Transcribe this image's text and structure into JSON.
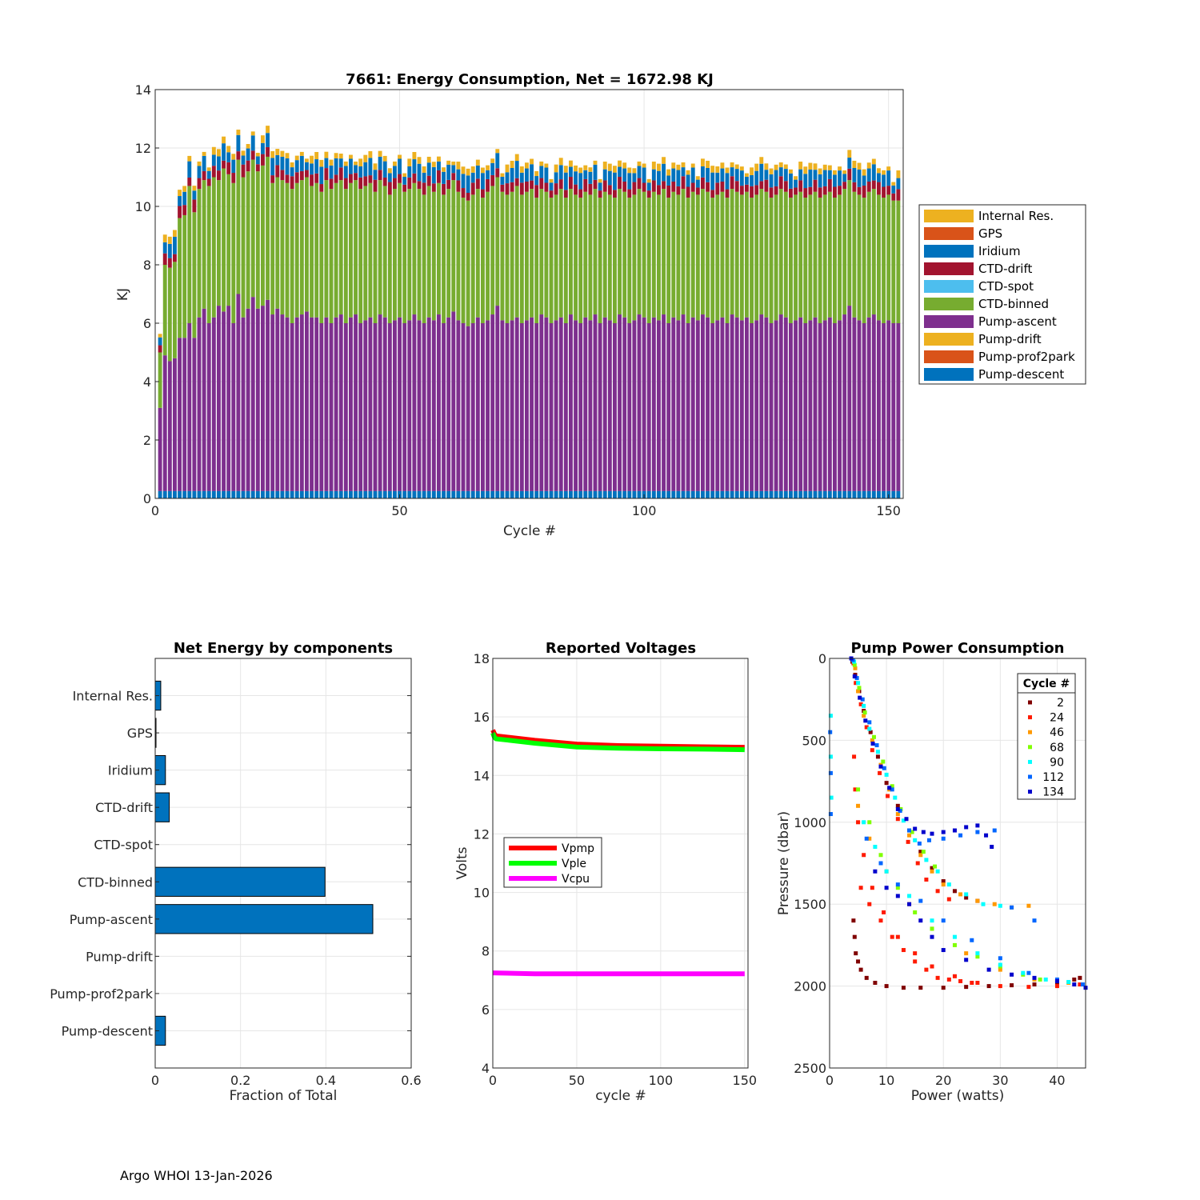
{
  "footer": "Argo WHOI 13-Jan-2026",
  "chart_data": [
    {
      "id": "energy",
      "type": "bar",
      "stacked": true,
      "title": "7661: Energy Consumption,  Net = 1672.98 KJ",
      "xlabel": "Cycle #",
      "ylabel": "KJ",
      "xlim": [
        0,
        153
      ],
      "ylim": [
        0,
        14
      ],
      "xticks": [
        0,
        50,
        100,
        150
      ],
      "yticks": [
        0,
        2,
        4,
        6,
        8,
        10,
        12,
        14
      ],
      "grid": true,
      "legend_position": "outside-right",
      "legend": [
        "Internal Res.",
        "GPS",
        "Iridium",
        "CTD-drift",
        "CTD-spot",
        "CTD-binned",
        "Pump-ascent",
        "Pump-drift",
        "Pump-prof2park",
        "Pump-descent"
      ],
      "colors": {
        "Internal Res.": "#EDB120",
        "GPS": "#D95319",
        "Iridium": "#0072BD",
        "CTD-drift": "#A2142F",
        "CTD-spot": "#4DBEEE",
        "CTD-binned": "#77AC30",
        "Pump-ascent": "#7E2F8E",
        "Pump-drift": "#EDB120",
        "Pump-prof2park": "#D95319",
        "Pump-descent": "#0072BD"
      },
      "cycles": [
        1,
        2,
        3,
        4,
        5,
        6,
        7,
        8,
        9,
        10,
        11,
        12,
        13,
        14,
        15,
        16,
        17,
        18,
        19,
        20,
        21,
        22,
        23,
        24,
        25,
        26,
        27,
        28,
        29,
        30,
        31,
        32,
        33,
        34,
        35,
        36,
        37,
        38,
        39,
        40,
        41,
        42,
        43,
        44,
        45,
        46,
        47,
        48,
        49,
        50,
        51,
        52,
        53,
        54,
        55,
        56,
        57,
        58,
        59,
        60,
        61,
        62,
        63,
        64,
        65,
        66,
        67,
        68,
        69,
        70,
        71,
        72,
        73,
        74,
        75,
        76,
        77,
        78,
        79,
        80,
        81,
        82,
        83,
        84,
        85,
        86,
        87,
        88,
        89,
        90,
        91,
        92,
        93,
        94,
        95,
        96,
        97,
        98,
        99,
        100,
        101,
        102,
        103,
        104,
        105,
        106,
        107,
        108,
        109,
        110,
        111,
        112,
        113,
        114,
        115,
        116,
        117,
        118,
        119,
        120,
        121,
        122,
        123,
        124,
        125,
        126,
        127,
        128,
        129,
        130,
        131,
        132,
        133,
        134,
        135,
        136,
        137,
        138,
        139,
        140,
        141,
        142,
        143,
        144,
        145,
        146,
        147,
        148,
        149,
        150,
        151,
        152
      ],
      "pump_descent_level": 0.25,
      "pump_ascent_top": [
        3.1,
        4.9,
        4.7,
        4.8,
        5.5,
        5.5,
        6.0,
        5.5,
        6.2,
        6.5,
        6.0,
        6.2,
        6.6,
        6.4,
        6.6,
        6.0,
        7.0,
        6.2,
        6.5,
        6.9,
        6.5,
        6.6,
        6.8,
        6.3,
        6.5,
        6.3,
        6.2,
        6.0,
        6.2,
        6.3,
        6.4,
        6.2,
        6.2,
        6.0,
        6.2,
        6.0,
        6.2,
        6.3,
        6.0,
        6.2,
        6.3,
        6.0,
        6.1,
        6.2,
        6.0,
        6.3,
        6.2,
        6.0,
        6.1,
        6.2,
        6.0,
        6.1,
        6.3,
        6.1,
        6.0,
        6.2,
        6.1,
        6.3,
        6.0,
        6.2,
        6.4,
        6.1,
        6.0,
        5.9,
        6.0,
        6.2,
        6.0,
        6.1,
        6.3,
        6.6,
        6.1,
        6.0,
        6.1,
        6.2,
        6.0,
        6.1,
        6.2,
        6.0,
        6.3,
        6.2,
        6.0,
        6.1,
        6.2,
        6.0,
        6.3,
        6.1,
        6.0,
        6.2,
        6.1,
        6.3,
        6.0,
        6.2,
        6.1,
        6.0,
        6.3,
        6.2,
        6.0,
        6.1,
        6.3,
        6.2,
        6.0,
        6.2,
        6.1,
        6.3,
        6.0,
        6.2,
        6.1,
        6.3,
        6.0,
        6.2,
        6.1,
        6.3,
        6.2,
        6.0,
        6.1,
        6.2,
        6.0,
        6.3,
        6.2,
        6.1,
        6.2,
        6.0,
        6.1,
        6.3,
        6.2,
        6.0,
        6.1,
        6.3,
        6.2,
        6.0,
        6.1,
        6.2,
        6.0,
        6.1,
        6.2,
        6.0,
        6.1,
        6.2,
        6.0,
        6.1,
        6.3,
        6.6,
        6.2,
        6.1,
        6.0,
        6.2,
        6.3,
        6.1,
        6.0,
        6.1,
        6.0,
        6.0
      ],
      "ctd_binned_top": [
        5.0,
        8.0,
        7.9,
        8.1,
        9.6,
        9.7,
        10.7,
        9.8,
        10.6,
        10.9,
        10.7,
        11.0,
        10.9,
        11.3,
        11.1,
        10.8,
        11.6,
        11.0,
        11.2,
        11.6,
        11.2,
        11.4,
        11.7,
        10.8,
        11.0,
        10.9,
        10.8,
        10.6,
        10.8,
        10.9,
        11.0,
        10.7,
        10.8,
        10.5,
        10.9,
        10.6,
        10.8,
        10.9,
        10.6,
        10.8,
        10.9,
        10.6,
        10.7,
        10.8,
        10.5,
        10.9,
        10.7,
        10.4,
        10.6,
        10.8,
        10.5,
        10.6,
        10.8,
        10.6,
        10.4,
        10.7,
        10.5,
        10.8,
        10.4,
        10.6,
        10.9,
        10.5,
        10.3,
        10.2,
        10.4,
        10.6,
        10.3,
        10.5,
        10.7,
        11.0,
        10.5,
        10.4,
        10.5,
        10.7,
        10.4,
        10.5,
        10.6,
        10.3,
        10.6,
        10.5,
        10.3,
        10.4,
        10.6,
        10.3,
        10.6,
        10.4,
        10.3,
        10.5,
        10.4,
        10.6,
        10.3,
        10.5,
        10.4,
        10.3,
        10.6,
        10.5,
        10.3,
        10.4,
        10.6,
        10.5,
        10.3,
        10.5,
        10.4,
        10.6,
        10.3,
        10.5,
        10.4,
        10.6,
        10.3,
        10.5,
        10.4,
        10.6,
        10.5,
        10.3,
        10.4,
        10.5,
        10.3,
        10.6,
        10.5,
        10.4,
        10.5,
        10.3,
        10.4,
        10.6,
        10.5,
        10.3,
        10.4,
        10.6,
        10.5,
        10.3,
        10.4,
        10.5,
        10.3,
        10.4,
        10.5,
        10.3,
        10.4,
        10.5,
        10.3,
        10.4,
        10.6,
        10.9,
        10.5,
        10.4,
        10.3,
        10.5,
        10.6,
        10.4,
        10.3,
        10.4,
        10.2,
        10.2
      ],
      "ctd_drift_kj": 0.35,
      "iridium_kj": 0.45,
      "internal_res_kj": 0.2
    },
    {
      "id": "components",
      "type": "bar",
      "orientation": "horizontal",
      "title": "Net Energy by components",
      "xlabel": "Fraction of Total",
      "xlim": [
        0,
        0.6
      ],
      "xticks": [
        0,
        0.2,
        0.4,
        0.6
      ],
      "grid": true,
      "color": "#0072BD",
      "categories": [
        "Internal Res.",
        "GPS",
        "Iridium",
        "CTD-drift",
        "CTD-spot",
        "CTD-binned",
        "Pump-ascent",
        "Pump-drift",
        "Pump-prof2park",
        "Pump-descent"
      ],
      "values": [
        0.013,
        0.001,
        0.024,
        0.033,
        0.0,
        0.398,
        0.51,
        0.0,
        0.0,
        0.024
      ]
    },
    {
      "id": "voltages",
      "type": "line",
      "title": "Reported Voltages",
      "xlabel": "cycle #",
      "ylabel": "Volts",
      "xlim": [
        0,
        152
      ],
      "ylim": [
        4,
        18
      ],
      "xticks": [
        0,
        50,
        100,
        150
      ],
      "yticks": [
        4,
        6,
        8,
        10,
        12,
        14,
        16,
        18
      ],
      "grid": true,
      "legend_position": "middle-left",
      "series": [
        {
          "name": "Vpmp",
          "color": "#FF0000",
          "x": [
            0,
            1,
            2,
            10,
            25,
            50,
            75,
            100,
            125,
            150
          ],
          "y": [
            15.55,
            15.42,
            15.35,
            15.3,
            15.2,
            15.07,
            15.02,
            15.0,
            14.98,
            14.96
          ]
        },
        {
          "name": "Vple",
          "color": "#00FF00",
          "x": [
            0,
            1,
            2,
            10,
            25,
            50,
            75,
            100,
            125,
            150
          ],
          "y": [
            15.45,
            15.3,
            15.25,
            15.2,
            15.1,
            14.97,
            14.93,
            14.91,
            14.9,
            14.88
          ]
        },
        {
          "name": "Vcpu",
          "color": "#FF00FF",
          "x": [
            0,
            25,
            50,
            75,
            100,
            125,
            150
          ],
          "y": [
            7.25,
            7.22,
            7.22,
            7.22,
            7.22,
            7.22,
            7.22
          ]
        }
      ]
    },
    {
      "id": "pump",
      "type": "scatter",
      "title": "Pump Power Consumption",
      "xlabel": "Power (watts)",
      "ylabel": "Pressure (dbar)",
      "xlim": [
        0,
        45
      ],
      "ylim": [
        0,
        2500
      ],
      "y_reversed": true,
      "xticks": [
        0,
        10,
        20,
        30,
        40
      ],
      "yticks": [
        0,
        500,
        1000,
        1500,
        2000,
        2500
      ],
      "grid": true,
      "legend_title": "Cycle #",
      "legend_position": "top-right",
      "legend": [
        {
          "label": "2",
          "color": "#800000"
        },
        {
          "label": "24",
          "color": "#FF1A00"
        },
        {
          "label": "46",
          "color": "#FF9900"
        },
        {
          "label": "68",
          "color": "#80FF00"
        },
        {
          "label": "90",
          "color": "#00FFFF"
        },
        {
          "label": "112",
          "color": "#0066FF"
        },
        {
          "label": "134",
          "color": "#0000CC"
        }
      ],
      "groups": [
        {
          "color": "#800000",
          "x": [
            4.0,
            4.5,
            5.2,
            6.0,
            7.2,
            8.5,
            10.0,
            12.0,
            14.0,
            16.0,
            18.0,
            20.0,
            22.0,
            24.0,
            26.0,
            4.2,
            4.4,
            4.6,
            5.0,
            5.5,
            6.5,
            8.0,
            10.0,
            13.0,
            16.0,
            20.0,
            24.0,
            28.0,
            32.0,
            36.0,
            40.0,
            43.0,
            44.0
          ],
          "y": [
            20,
            100,
            200,
            320,
            450,
            600,
            760,
            900,
            1050,
            1180,
            1280,
            1360,
            1420,
            1460,
            1480,
            1600,
            1700,
            1800,
            1850,
            1900,
            1950,
            1980,
            2000,
            2010,
            2010,
            2010,
            2005,
            2000,
            1995,
            1990,
            1980,
            1960,
            1950
          ]
        },
        {
          "color": "#FF1A00",
          "x": [
            4.2,
            4.6,
            5.5,
            6.5,
            7.5,
            8.8,
            10.2,
            12.0,
            13.8,
            15.5,
            17.0,
            19.0,
            21.0,
            4.3,
            4.5,
            5.0,
            6.0,
            7.5,
            9.5,
            12.0,
            15.0,
            18.0,
            22.0,
            26.0,
            30.0,
            35.0,
            40.0,
            44.0,
            5.5,
            7.0,
            9.0,
            11.0,
            13.0,
            15.0,
            17.0,
            19.0,
            21.0,
            23.0,
            25.0
          ],
          "y": [
            30,
            150,
            280,
            420,
            560,
            700,
            840,
            980,
            1120,
            1250,
            1350,
            1420,
            1470,
            600,
            800,
            1000,
            1200,
            1400,
            1550,
            1700,
            1800,
            1880,
            1940,
            1980,
            2000,
            2005,
            2000,
            1990,
            1400,
            1500,
            1600,
            1700,
            1780,
            1850,
            1900,
            1950,
            1960,
            1970,
            1980
          ]
        },
        {
          "color": "#FF9900",
          "x": [
            4.5,
            5.0,
            6.0,
            7.5,
            9.0,
            10.5,
            12.0,
            14.0,
            16.0,
            18.0,
            20.0,
            23.0,
            26.0,
            29.0,
            32.0,
            35.0,
            5.0,
            7.0,
            10.0,
            14.0,
            18.0,
            24.0,
            30.0,
            36.0,
            42.0
          ],
          "y": [
            60,
            200,
            350,
            500,
            650,
            800,
            950,
            1080,
            1200,
            1300,
            1380,
            1440,
            1480,
            1500,
            1520,
            1510,
            900,
            1100,
            1300,
            1500,
            1650,
            1800,
            1900,
            1960,
            1980
          ]
        },
        {
          "color": "#80FF00",
          "x": [
            4.4,
            5.2,
            6.2,
            7.8,
            9.4,
            11.0,
            12.5,
            14.5,
            16.5,
            18.5,
            5.0,
            7.0,
            9.0,
            12.0,
            15.0,
            18.0,
            22.0,
            26.0,
            30.0,
            34.0,
            37.0
          ],
          "y": [
            40,
            180,
            330,
            480,
            630,
            780,
            920,
            1060,
            1180,
            1270,
            800,
            1000,
            1200,
            1400,
            1550,
            1650,
            1750,
            1820,
            1880,
            1930,
            1960
          ]
        },
        {
          "color": "#00FFFF",
          "x": [
            4.3,
            5.0,
            6.0,
            7.0,
            8.5,
            10.0,
            11.5,
            13.0,
            15.0,
            17.0,
            19.0,
            21.0,
            24.0,
            27.0,
            30.0,
            0.2,
            0.2,
            0.3,
            6.0,
            8.0,
            10.0,
            14.0,
            18.0,
            22.0,
            26.0,
            30.0,
            34.0,
            38.0,
            42.0
          ],
          "y": [
            20,
            150,
            290,
            430,
            570,
            710,
            850,
            990,
            1110,
            1230,
            1300,
            1380,
            1440,
            1500,
            1510,
            350,
            600,
            850,
            1000,
            1150,
            1300,
            1450,
            1600,
            1700,
            1800,
            1870,
            1920,
            1960,
            1975
          ]
        },
        {
          "color": "#0066FF",
          "x": [
            4.1,
            4.8,
            5.8,
            7.0,
            8.3,
            9.6,
            11.0,
            12.4,
            14.0,
            15.8,
            17.5,
            20.0,
            23.0,
            26.0,
            29.0,
            32.0,
            36.0,
            0.1,
            0.2,
            0.2,
            6.5,
            9.0,
            12.0,
            16.0,
            20.0,
            25.0,
            30.0,
            35.0,
            40.0,
            44.5
          ],
          "y": [
            10,
            120,
            250,
            390,
            530,
            670,
            800,
            930,
            1050,
            1130,
            1110,
            1100,
            1080,
            1060,
            1050,
            1520,
            1600,
            450,
            700,
            950,
            1100,
            1250,
            1380,
            1480,
            1600,
            1720,
            1830,
            1920,
            1960,
            1990
          ]
        },
        {
          "color": "#0000CC",
          "x": [
            3.8,
            4.4,
            5.3,
            6.3,
            7.6,
            9.0,
            10.5,
            12.0,
            13.5,
            15.0,
            16.5,
            18.0,
            20.0,
            22.0,
            24.0,
            26.0,
            27.5,
            28.5,
            8.0,
            10.0,
            12.0,
            14.0,
            16.0,
            18.0,
            20.0,
            24.0,
            28.0,
            32.0,
            36.0,
            40.0,
            43.0,
            45.0
          ],
          "y": [
            0,
            110,
            240,
            380,
            520,
            660,
            790,
            920,
            980,
            1040,
            1060,
            1070,
            1060,
            1050,
            1030,
            1020,
            1080,
            1150,
            1300,
            1400,
            1450,
            1500,
            1600,
            1700,
            1780,
            1840,
            1900,
            1930,
            1950,
            1970,
            1990,
            2010
          ]
        }
      ]
    }
  ]
}
